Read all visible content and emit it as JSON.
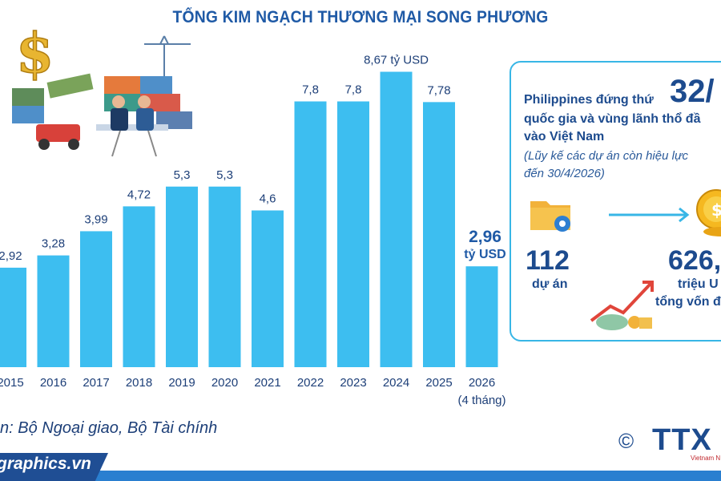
{
  "title": "TỔNG KIM NGẠCH THƯƠNG MẠI SONG PHƯƠNG",
  "chart_data": {
    "type": "bar",
    "categories": [
      "2015",
      "2016",
      "2017",
      "2018",
      "2019",
      "2020",
      "2021",
      "2022",
      "2023",
      "2024",
      "2025",
      "2026"
    ],
    "category_subtitles": [
      "",
      "",
      "",
      "",
      "",
      "",
      "",
      "",
      "",
      "",
      "",
      "(4 tháng)"
    ],
    "values": [
      2.92,
      3.28,
      3.99,
      4.72,
      5.3,
      5.3,
      4.6,
      7.8,
      7.8,
      8.67,
      7.78,
      2.96
    ],
    "data_labels": [
      "2,92",
      "3,28",
      "3,99",
      "4,72",
      "5,3",
      "5,3",
      "4,6",
      "7,8",
      "7,8",
      "8,67 tỷ USD",
      "7,78",
      "2,96"
    ],
    "last_label_unit": "tỷ USD",
    "bar_color": "#3dbef0",
    "highlight_label_color": "#1f5aa6"
  },
  "investment_panel": {
    "line1": "Philippines đứng thứ",
    "rank": "32/",
    "line2": "quốc gia và vùng lãnh thổ đầ",
    "line3": "vào Việt Nam",
    "note1": "(Lũy kế các dự án còn hiệu lực",
    "note2": "đến 30/4/2026)",
    "projects_value": "112",
    "projects_label": "dự án",
    "capital_value": "626,",
    "capital_label1": "triệu U",
    "capital_label2": "tổng vốn đ",
    "border_color": "#38b6e6"
  },
  "source": "n: Bộ Ngoại giao, Bộ Tài chính",
  "footer": {
    "site": "graphics.vn"
  },
  "logo": {
    "copyright": "©",
    "brand": "TTX",
    "tagline": "Vietnam N"
  },
  "icons": [
    "dollar-icon",
    "trade-port-illustration",
    "folder-gear-icon",
    "arrow-right-icon",
    "coin-icon",
    "money-growth-icon"
  ]
}
